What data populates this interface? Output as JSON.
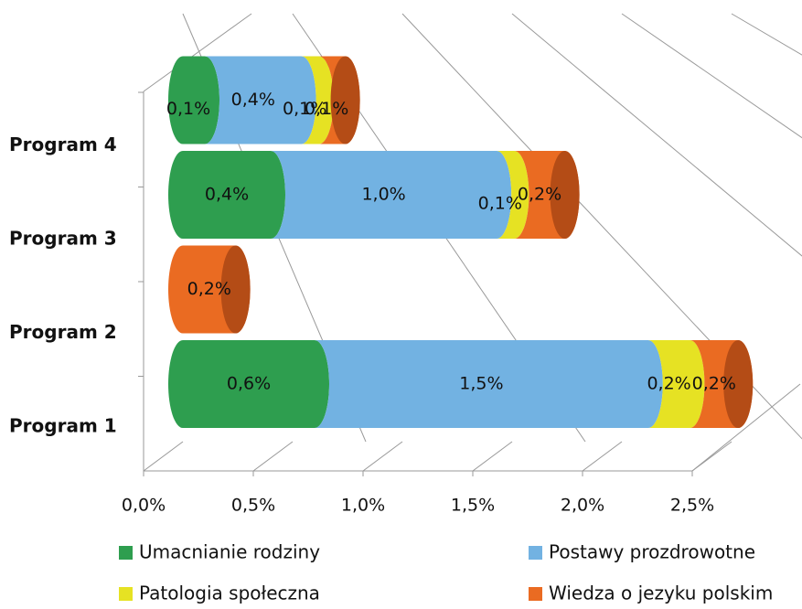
{
  "chart_data": {
    "type": "bar3d_stacked_horizontal",
    "categories": [
      "Program 1",
      "Program 2",
      "Program 3",
      "Program 4"
    ],
    "series": [
      {
        "name": "Umacnianie rodziny",
        "color": "#2e9e4f",
        "values": [
          0.6,
          null,
          0.4,
          0.1
        ],
        "value_labels": [
          "0,6%",
          null,
          "0,4%",
          "0,1%"
        ]
      },
      {
        "name": "Postawy prozdrowotne",
        "color": "#72b2e2",
        "values": [
          1.52,
          null,
          1.03,
          0.44
        ],
        "value_labels": [
          "1,5%",
          null,
          "1,0%",
          "0,4%"
        ]
      },
      {
        "name": "Patologia społeczna",
        "color": "#e6e223",
        "values": [
          0.19,
          null,
          0.08,
          0.08
        ],
        "value_labels": [
          "0,2%",
          null,
          "0,1%",
          "0,1%"
        ]
      },
      {
        "name": "Wiedza o jezyku polskim",
        "color": "#ea6b22",
        "values": [
          0.22,
          0.24,
          0.23,
          0.12
        ],
        "value_labels": [
          "0,2%",
          "0,2%",
          "0,2%",
          "0,1%"
        ]
      }
    ],
    "xlim": [
      0,
      2.5
    ],
    "xticks": [
      {
        "value": 0,
        "label": "0,0%"
      },
      {
        "value": 0.5,
        "label": "0,5%"
      },
      {
        "value": 1,
        "label": "1,0%"
      },
      {
        "value": 1.5,
        "label": "1,5%"
      },
      {
        "value": 2,
        "label": "2,0%"
      },
      {
        "value": 2.5,
        "label": "2,5%"
      }
    ],
    "grid": true
  }
}
